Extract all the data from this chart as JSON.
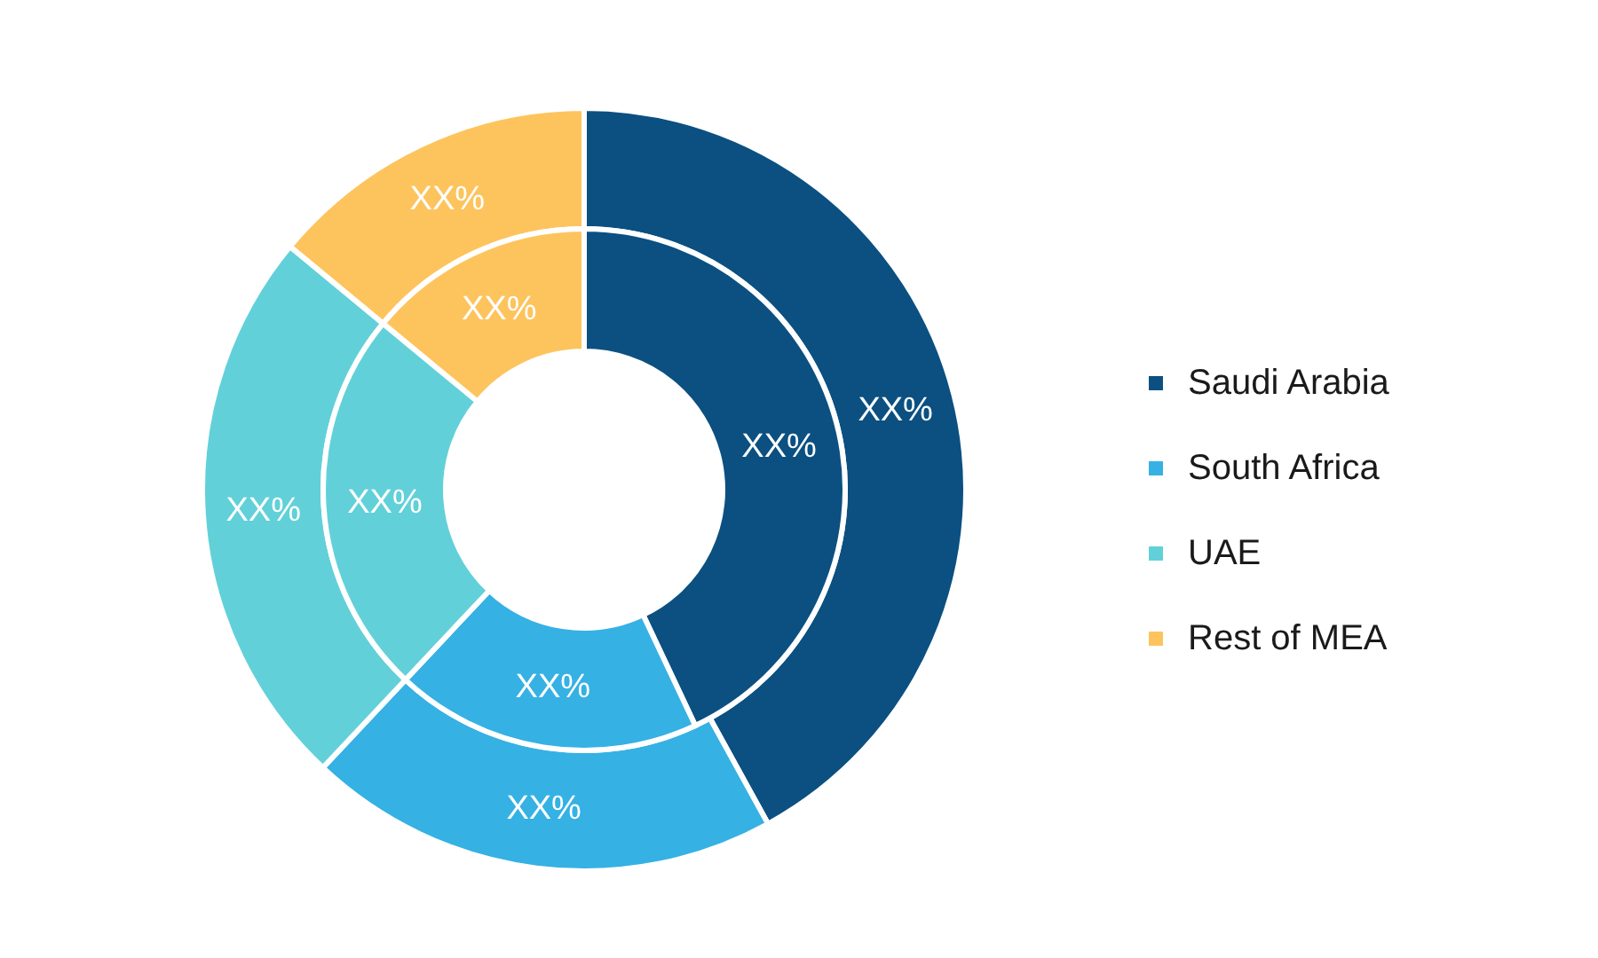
{
  "chart_data": {
    "type": "donut",
    "categories": [
      "Saudi Arabia",
      "South Africa",
      "UAE",
      "Rest of MEA"
    ],
    "colors": [
      "#0b5081",
      "#35b1e4",
      "#62d0d9",
      "#fdc45e"
    ],
    "series": [
      {
        "values": [
          42,
          20,
          24,
          14
        ],
        "value_labels": [
          "XX%",
          "XX%",
          "XX%",
          "XX%"
        ]
      },
      {
        "values": [
          43,
          19,
          24,
          14
        ],
        "value_labels": [
          "XX%",
          "XX%",
          "XX%",
          "XX%"
        ]
      }
    ],
    "legend": "right"
  }
}
